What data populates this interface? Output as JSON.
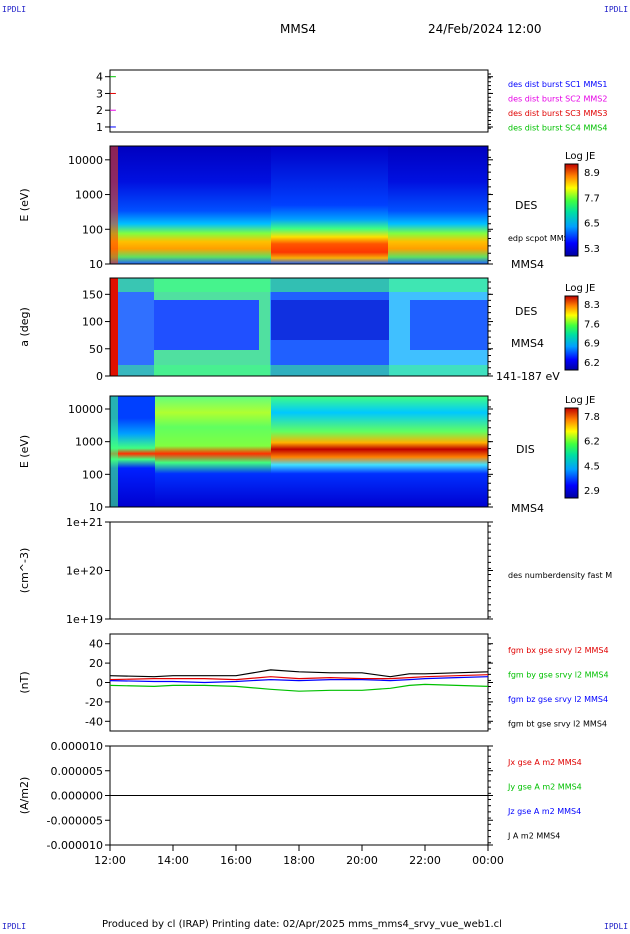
{
  "header": {
    "corner_label": "IPDLI",
    "spacecraft": "MMS4",
    "datetime": "24/Feb/2024 12:00"
  },
  "footer": {
    "text": "Produced by cl (IRAP)    Printing date: 02/Apr/2025    mms_mms4_srvy_vue_web1.cl"
  },
  "colors": {
    "mms1": "#0000ff",
    "mms2": "#e600e6",
    "mms3": "#e00000",
    "mms4": "#00c000",
    "bx": "#e00000",
    "by": "#00c000",
    "bz": "#0000ff",
    "bt": "#000000"
  },
  "time_axis": {
    "ticks": [
      "12:00",
      "14:00",
      "16:00",
      "18:00",
      "20:00",
      "22:00",
      "00:00"
    ],
    "range_hours": [
      12,
      24
    ]
  },
  "chart_data": [
    {
      "type": "scatter",
      "panel": "burst",
      "yticks": [
        "1",
        "2",
        "3",
        "4"
      ],
      "ylim": [
        0.7,
        4.4
      ],
      "legend": [
        {
          "label": "des dist burst SC1 MMS1",
          "color": "#0000ff"
        },
        {
          "label": "des dist burst SC2 MMS2",
          "color": "#e600e6"
        },
        {
          "label": "des dist burst SC3 MMS3",
          "color": "#e00000"
        },
        {
          "label": "des dist burst SC4 MMS4",
          "color": "#00c000"
        }
      ],
      "markers": [
        {
          "spacecraft": 1,
          "t_start": "12:00",
          "t_end": "12:15",
          "color": "#0000ff"
        },
        {
          "spacecraft": 2,
          "t_start": "12:00",
          "t_end": "12:15",
          "color": "#e600e6"
        },
        {
          "spacecraft": 3,
          "t_start": "12:00",
          "t_end": "12:15",
          "color": "#e00000"
        },
        {
          "spacecraft": 4,
          "t_start": "12:00",
          "t_end": "12:15",
          "color": "#00c000"
        }
      ]
    },
    {
      "type": "heatmap",
      "panel": "des_energy",
      "ylabel": "E (eV)",
      "yscale": "log",
      "yticks": [
        "10",
        "100",
        "1000",
        "10000"
      ],
      "ylim": [
        10,
        25000
      ],
      "right_labels": [
        "DES",
        "edp scpot MMS4",
        "MMS4"
      ],
      "colorbar": {
        "title": "Log JE",
        "ticks": [
          "8.9",
          "7.7",
          "6.5",
          "5.3"
        ],
        "range": [
          5.3,
          8.9
        ]
      }
    },
    {
      "type": "heatmap",
      "panel": "des_pitch",
      "ylabel": "a (deg)",
      "yticks": [
        "0",
        "50",
        "100",
        "150"
      ],
      "ylim": [
        0,
        180
      ],
      "right_labels": [
        "DES",
        "MMS4",
        "141-187 eV"
      ],
      "colorbar": {
        "title": "Log JE",
        "ticks": [
          "8.3",
          "7.6",
          "6.9",
          "6.2"
        ],
        "range": [
          6.2,
          8.3
        ]
      }
    },
    {
      "type": "heatmap",
      "panel": "dis_energy",
      "ylabel": "E (eV)",
      "yscale": "log",
      "yticks": [
        "10",
        "100",
        "1000",
        "10000"
      ],
      "ylim": [
        10,
        25000
      ],
      "right_labels": [
        "DIS",
        "MMS4"
      ],
      "colorbar": {
        "title": "Log JE",
        "ticks": [
          "7.8",
          "6.2",
          "4.5",
          "2.9"
        ],
        "range": [
          2.9,
          7.8
        ]
      }
    },
    {
      "type": "line",
      "panel": "density",
      "ylabel": "(cm^-3)",
      "yscale": "log",
      "yticks": [
        "1e+21",
        "1e+20",
        "1e+19"
      ],
      "ylim": [
        1e+19,
        1e+21
      ],
      "legend": [
        {
          "label": "des numberdensity fast M",
          "color": "#000000"
        }
      ]
    },
    {
      "type": "line",
      "panel": "magnetic_field",
      "ylabel": "(nT)",
      "yticks": [
        "40",
        "20",
        "0",
        "-20",
        "-40"
      ],
      "ylim": [
        -50,
        50
      ],
      "legend": [
        {
          "label": "fgm bx gse srvy l2 MMS4",
          "color": "#e00000"
        },
        {
          "label": "fgm by gse srvy l2 MMS4",
          "color": "#00c000"
        },
        {
          "label": "fgm bz gse srvy l2 MMS4",
          "color": "#0000ff"
        },
        {
          "label": "fgm bt gse srvy l2 MMS4",
          "color": "#000000"
        }
      ],
      "x_hours": [
        12,
        13.4,
        14,
        15,
        16,
        17.1,
        18,
        19,
        20,
        20.9,
        21.5,
        22,
        23,
        24
      ],
      "series": [
        {
          "name": "bx",
          "values": [
            3,
            4,
            4,
            4,
            3,
            6,
            4,
            5,
            4,
            4,
            5,
            6,
            7,
            8
          ]
        },
        {
          "name": "by",
          "values": [
            -3,
            -4,
            -3,
            -3,
            -4,
            -7,
            -9,
            -8,
            -8,
            -6,
            -3,
            -2,
            -3,
            -4
          ]
        },
        {
          "name": "bz",
          "values": [
            2,
            1,
            1,
            0,
            1,
            3,
            2,
            3,
            3,
            2,
            3,
            4,
            5,
            6
          ]
        },
        {
          "name": "bt",
          "values": [
            7,
            6,
            7,
            7,
            7,
            13,
            11,
            10,
            10,
            6,
            9,
            9,
            10,
            11
          ]
        }
      ]
    },
    {
      "type": "line",
      "panel": "current_density",
      "ylabel": "(A/m2)",
      "yticks": [
        "0.000010",
        "0.000005",
        "0.000000",
        "-0.000005",
        "-0.000010"
      ],
      "ylim": [
        -1e-05,
        1e-05
      ],
      "legend": [
        {
          "label": "Jx gse A m2 MMS4",
          "color": "#e00000"
        },
        {
          "label": "Jy gse A m2 MMS4",
          "color": "#00c000"
        },
        {
          "label": "Jz gse A m2 MMS4",
          "color": "#0000ff"
        },
        {
          "label": "J A m2 MMS4",
          "color": "#000000"
        }
      ]
    }
  ]
}
